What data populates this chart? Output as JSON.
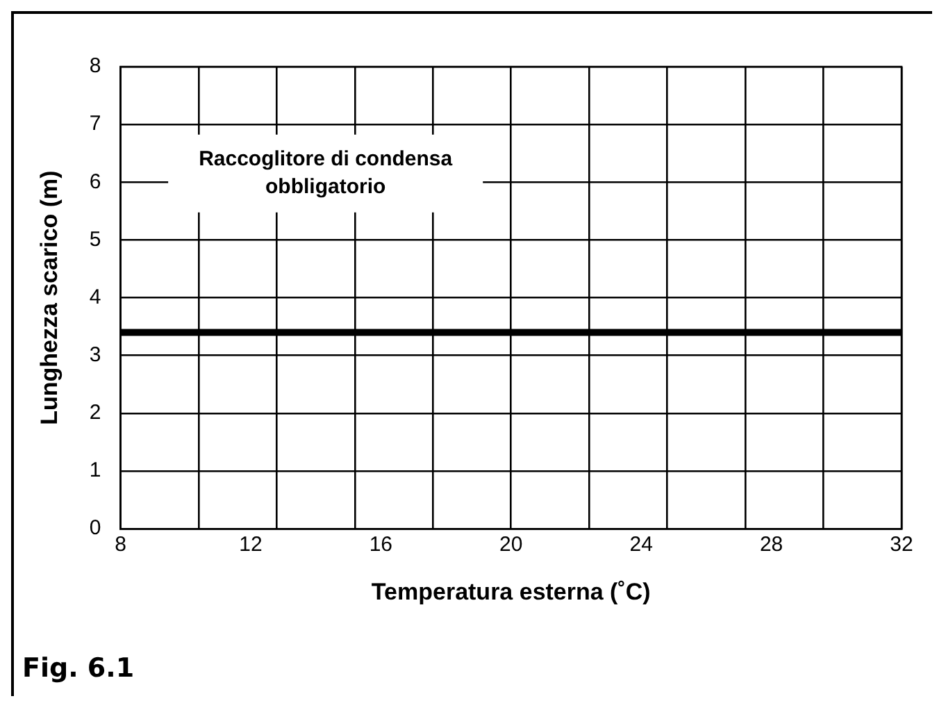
{
  "chart_data": {
    "type": "line",
    "xlabel": "Temperatura esterna (˚C)",
    "ylabel": "Lunghezza scarico (m)",
    "x": [
      8,
      32
    ],
    "series": [
      {
        "color": "#000000",
        "values": [
          3.4,
          3.4
        ]
      }
    ],
    "xlim": [
      8,
      32
    ],
    "xticks": [
      8,
      {
        "value": 10.4,
        "label": null
      },
      12,
      {
        "value": 12.8,
        "label": null
      },
      {
        "value": 15.2,
        "label": null
      },
      16,
      {
        "value": 17.6,
        "label": null
      },
      20,
      {
        "value": 20.0,
        "label": null
      },
      {
        "value": 22.4,
        "label": null
      },
      24,
      {
        "value": 24.8,
        "label": null
      },
      {
        "value": 27.2,
        "label": null
      },
      28,
      {
        "value": 29.6,
        "label": null
      },
      32
    ],
    "ylim": [
      0,
      8
    ],
    "yticks": [
      0,
      1,
      2,
      3,
      4,
      5,
      6,
      7,
      8
    ],
    "grid": true,
    "legend": false,
    "marker": "none",
    "line_style": "solid",
    "annotations": [
      "Raccoglitore di condensa\nobbligatorio",
      "Fig. 6.1"
    ]
  }
}
